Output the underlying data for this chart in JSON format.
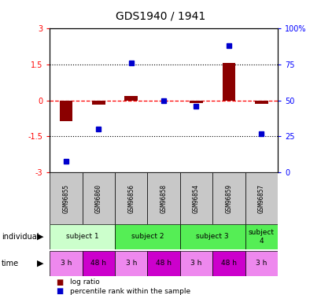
{
  "title": "GDS1940 / 1941",
  "samples": [
    "GSM96855",
    "GSM96860",
    "GSM96856",
    "GSM96858",
    "GSM96854",
    "GSM96859",
    "GSM96857"
  ],
  "log_ratio": [
    -0.85,
    -0.18,
    0.18,
    0.0,
    -0.12,
    1.55,
    -0.15
  ],
  "percentile_rank": [
    8,
    30,
    76,
    50,
    46,
    88,
    27
  ],
  "ylim_left": [
    -3,
    3
  ],
  "ylim_right": [
    0,
    100
  ],
  "yticks_left": [
    -3,
    -1.5,
    0,
    1.5,
    3
  ],
  "yticks_right": [
    0,
    25,
    50,
    75,
    100
  ],
  "ytick_labels_left": [
    "-3",
    "-1.5",
    "0",
    "1.5",
    "3"
  ],
  "ytick_labels_right": [
    "0",
    "25",
    "50",
    "75",
    "100%"
  ],
  "bar_color": "#8B0000",
  "dot_color": "#0000CD",
  "bar_width": 0.4,
  "subjects_info": [
    {
      "label": "subject 1",
      "start": 0,
      "end": 2,
      "color": "#ccffcc"
    },
    {
      "label": "subject 2",
      "start": 2,
      "end": 4,
      "color": "#55ee55"
    },
    {
      "label": "subject 3",
      "start": 4,
      "end": 6,
      "color": "#55ee55"
    },
    {
      "label": "subject\n4",
      "start": 6,
      "end": 7,
      "color": "#55ee55"
    }
  ],
  "times": [
    "3 h",
    "48 h",
    "3 h",
    "48 h",
    "3 h",
    "48 h",
    "3 h"
  ],
  "time_colors": [
    "#ee88ee",
    "#cc00cc",
    "#ee88ee",
    "#cc00cc",
    "#ee88ee",
    "#cc00cc",
    "#ee88ee"
  ],
  "individual_label": "individual",
  "time_label": "time",
  "legend_bar": "log ratio",
  "legend_dot": "percentile rank within the sample",
  "background_color": "#ffffff",
  "plot_bg": "#ffffff",
  "gsm_bg": "#c8c8c8"
}
